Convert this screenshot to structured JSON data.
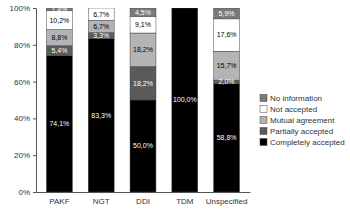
{
  "chart_data": {
    "type": "bar",
    "stacked": true,
    "data_labels": true,
    "grid": false,
    "legend": "right",
    "categories": [
      "PAKF",
      "NGT",
      "DDI",
      "TDM",
      "Unspecified"
    ],
    "ylim": [
      0,
      100
    ],
    "yticks": [
      {
        "value": 0,
        "label": "0%"
      },
      {
        "value": 20,
        "label": "20%"
      },
      {
        "value": 40,
        "label": "40%"
      },
      {
        "value": 60,
        "label": "60%"
      },
      {
        "value": 80,
        "label": "80%"
      },
      {
        "value": 100,
        "label": "100%"
      }
    ],
    "series": [
      {
        "name": "Completely accepted",
        "color": "#000000",
        "values": [
          74.1,
          83.3,
          50.0,
          100.0,
          58.8
        ],
        "value_labels": [
          "74,1%",
          "83,3%",
          "50,0%",
          "100,0%",
          "58,8%"
        ]
      },
      {
        "name": "Partially accepted",
        "color": "#5a5a5a",
        "values": [
          5.4,
          3.3,
          18.2,
          0,
          2.0
        ],
        "value_labels": [
          "5,4%",
          "3,3%",
          "18,2%",
          null,
          "2,0%"
        ]
      },
      {
        "name": "Mutual agreement",
        "color": "#b4b4b4",
        "values": [
          8.8,
          6.7,
          18.2,
          0,
          15.7
        ],
        "value_labels": [
          "8,8%",
          "6,7%",
          "18,2%",
          null,
          "15,7%"
        ]
      },
      {
        "name": "Not accepted",
        "color": "#ffffff",
        "values": [
          10.2,
          6.7,
          9.1,
          0,
          17.6
        ],
        "value_labels": [
          "10,2%",
          "6,7%",
          "9,1%",
          null,
          "17,6%"
        ]
      },
      {
        "name": "No information",
        "color": "#7a7a7a",
        "values": [
          1.4,
          0,
          4.5,
          0,
          5.9
        ],
        "value_labels": [
          "1,4%",
          null,
          "4,5%",
          null,
          "5,9%"
        ]
      }
    ]
  }
}
